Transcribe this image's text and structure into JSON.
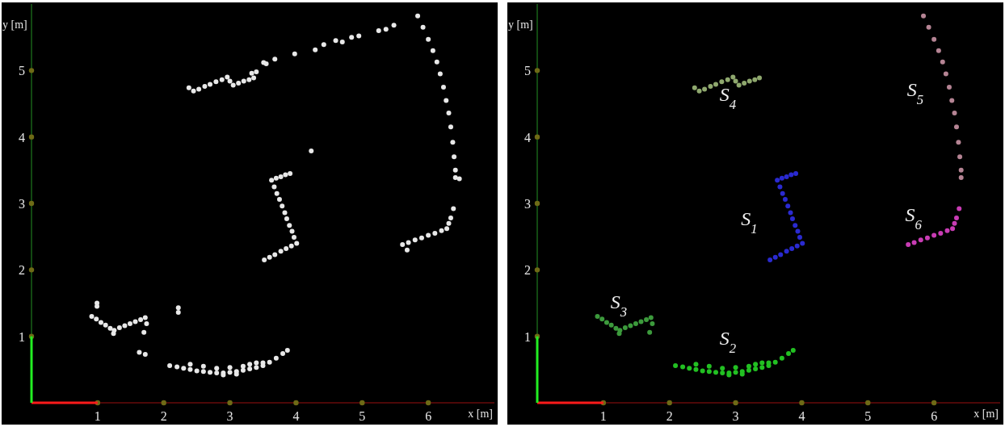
{
  "chart_data": [
    {
      "type": "scatter",
      "xlabel": "x [m]",
      "ylabel": "y [m]",
      "xlim": [
        0,
        7
      ],
      "ylim": [
        0,
        6
      ],
      "xticks": [
        1,
        2,
        3,
        4,
        5,
        6
      ],
      "yticks": [
        1,
        2,
        3,
        4,
        5
      ],
      "grid": false,
      "legend": false,
      "marker": "circle",
      "series": [
        {
          "color": "#e8e8e8",
          "x": [
            3.63,
            3.7,
            3.77,
            3.84,
            3.91,
            3.67,
            3.71,
            3.75,
            3.79,
            3.83,
            3.86,
            3.9,
            3.94,
            3.97,
            4.01,
            3.93,
            3.85,
            3.77,
            3.68,
            3.6,
            3.52,
            2.09,
            2.2,
            2.3,
            2.4,
            2.5,
            2.6,
            2.7,
            2.8,
            2.9,
            3.0,
            3.1,
            3.2,
            3.3,
            3.4,
            3.5,
            3.6,
            3.7,
            3.8,
            3.87,
            2.4,
            2.6,
            2.8,
            3.0,
            3.2,
            3.3,
            2.9,
            3.1,
            3.5,
            3.4,
            0.91,
            0.98,
            1.05,
            1.12,
            1.19,
            1.25,
            1.33,
            1.41,
            1.49,
            1.57,
            1.65,
            1.72,
            1.74,
            1.24,
            1.7,
            2.45,
            2.53,
            2.62,
            2.7,
            2.79,
            2.88,
            2.96,
            3.0,
            3.05,
            3.13,
            3.21,
            3.29,
            3.36,
            2.38,
            5.84,
            5.92,
            6.0,
            6.07,
            6.13,
            6.18,
            6.23,
            6.27,
            6.31,
            6.34,
            6.37,
            6.39,
            6.41,
            6.41,
            5.61,
            5.7,
            5.8,
            5.9,
            6.0,
            6.1,
            6.2,
            6.28,
            6.31,
            6.34,
            6.38,
            0.99,
            0.99,
            1.63,
            1.72,
            2.22,
            2.22,
            3.4,
            3.51,
            3.55,
            3.68,
            3.98,
            4.29,
            4.42,
            4.6,
            4.7,
            4.84,
            4.95,
            5.25,
            5.36,
            5.48,
            3.33,
            4.23,
            6.47,
            5.68
          ],
          "values": [
            3.35,
            3.38,
            3.4,
            3.43,
            3.45,
            3.25,
            3.15,
            3.06,
            2.96,
            2.86,
            2.77,
            2.67,
            2.58,
            2.49,
            2.4,
            2.36,
            2.32,
            2.28,
            2.23,
            2.19,
            2.15,
            0.56,
            0.54,
            0.52,
            0.5,
            0.48,
            0.47,
            0.46,
            0.45,
            0.45,
            0.46,
            0.47,
            0.49,
            0.51,
            0.53,
            0.56,
            0.61,
            0.67,
            0.74,
            0.79,
            0.58,
            0.55,
            0.52,
            0.53,
            0.55,
            0.58,
            0.42,
            0.43,
            0.6,
            0.6,
            1.3,
            1.26,
            1.21,
            1.17,
            1.12,
            1.09,
            1.13,
            1.16,
            1.19,
            1.22,
            1.25,
            1.28,
            1.19,
            1.04,
            1.06,
            4.69,
            4.72,
            4.76,
            4.79,
            4.83,
            4.86,
            4.9,
            4.84,
            4.78,
            4.81,
            4.84,
            4.86,
            4.89,
            4.74,
            5.82,
            5.65,
            5.47,
            5.3,
            5.13,
            4.95,
            4.75,
            4.55,
            4.36,
            4.15,
            3.92,
            3.7,
            3.5,
            3.39,
            2.38,
            2.41,
            2.45,
            2.48,
            2.52,
            2.55,
            2.59,
            2.62,
            2.7,
            2.78,
            2.92,
            1.5,
            1.45,
            0.76,
            0.73,
            1.43,
            1.36,
            4.98,
            5.12,
            5.1,
            5.17,
            5.25,
            5.31,
            5.39,
            5.45,
            5.43,
            5.5,
            5.52,
            5.6,
            5.62,
            5.68,
            4.96,
            3.79,
            3.37,
            2.3
          ]
        }
      ]
    },
    {
      "type": "scatter",
      "xlabel": "x [m]",
      "ylabel": "y [m]",
      "xlim": [
        0,
        7
      ],
      "ylim": [
        0,
        6
      ],
      "xticks": [
        1,
        2,
        3,
        4,
        5,
        6
      ],
      "yticks": [
        1,
        2,
        3,
        4,
        5
      ],
      "grid": false,
      "legend": false,
      "marker": "circle",
      "series": [
        {
          "name": "S$_{1}$",
          "color": "#2a2ad0",
          "x": [
            3.63,
            3.7,
            3.77,
            3.84,
            3.91,
            3.67,
            3.71,
            3.75,
            3.79,
            3.83,
            3.86,
            3.9,
            3.94,
            3.97,
            4.01,
            3.93,
            3.85,
            3.77,
            3.68,
            3.6,
            3.52
          ],
          "values": [
            3.35,
            3.38,
            3.4,
            3.43,
            3.45,
            3.25,
            3.15,
            3.06,
            2.96,
            2.86,
            2.77,
            2.67,
            2.58,
            2.49,
            2.4,
            2.36,
            2.32,
            2.28,
            2.23,
            2.19,
            2.15
          ]
        },
        {
          "name": "S$_{2}$",
          "color": "#22c022",
          "x": [
            2.09,
            2.2,
            2.3,
            2.4,
            2.5,
            2.6,
            2.7,
            2.8,
            2.9,
            3.0,
            3.1,
            3.2,
            3.3,
            3.4,
            3.5,
            3.6,
            3.7,
            3.8,
            3.87,
            2.4,
            2.6,
            2.8,
            3.0,
            3.2,
            3.3,
            2.9,
            3.1,
            3.5,
            3.4
          ],
          "values": [
            0.56,
            0.54,
            0.52,
            0.5,
            0.48,
            0.47,
            0.46,
            0.45,
            0.45,
            0.46,
            0.47,
            0.49,
            0.51,
            0.53,
            0.56,
            0.61,
            0.67,
            0.74,
            0.79,
            0.58,
            0.55,
            0.52,
            0.53,
            0.55,
            0.58,
            0.42,
            0.43,
            0.6,
            0.6
          ]
        },
        {
          "name": "S$_{3}$",
          "color": "#3c9a3c",
          "x": [
            0.91,
            0.98,
            1.05,
            1.12,
            1.19,
            1.25,
            1.33,
            1.41,
            1.49,
            1.57,
            1.65,
            1.72,
            1.74,
            1.24,
            1.7
          ],
          "values": [
            1.3,
            1.26,
            1.21,
            1.17,
            1.12,
            1.09,
            1.13,
            1.16,
            1.19,
            1.22,
            1.25,
            1.28,
            1.19,
            1.04,
            1.06
          ]
        },
        {
          "name": "S$_{4}$",
          "color": "#8fa86e",
          "x": [
            2.45,
            2.53,
            2.62,
            2.7,
            2.79,
            2.88,
            2.96,
            3.0,
            3.05,
            3.13,
            3.21,
            3.29,
            3.36,
            2.38
          ],
          "values": [
            4.69,
            4.72,
            4.76,
            4.79,
            4.83,
            4.86,
            4.9,
            4.84,
            4.78,
            4.81,
            4.84,
            4.86,
            4.89,
            4.74
          ]
        },
        {
          "name": "S$_{5}$",
          "color": "#b58494",
          "x": [
            5.84,
            5.92,
            6.0,
            6.07,
            6.13,
            6.18,
            6.23,
            6.27,
            6.31,
            6.34,
            6.37,
            6.39,
            6.41,
            6.41
          ],
          "values": [
            5.82,
            5.65,
            5.47,
            5.3,
            5.13,
            4.95,
            4.75,
            4.55,
            4.36,
            4.15,
            3.92,
            3.7,
            3.5,
            3.39
          ]
        },
        {
          "name": "S$_{6}$",
          "color": "#c83cb4",
          "x": [
            5.61,
            5.7,
            5.8,
            5.9,
            6.0,
            6.1,
            6.2,
            6.28,
            6.31,
            6.34,
            6.38
          ],
          "values": [
            2.38,
            2.41,
            2.45,
            2.48,
            2.52,
            2.55,
            2.59,
            2.62,
            2.7,
            2.78,
            2.92
          ]
        }
      ]
    }
  ]
}
